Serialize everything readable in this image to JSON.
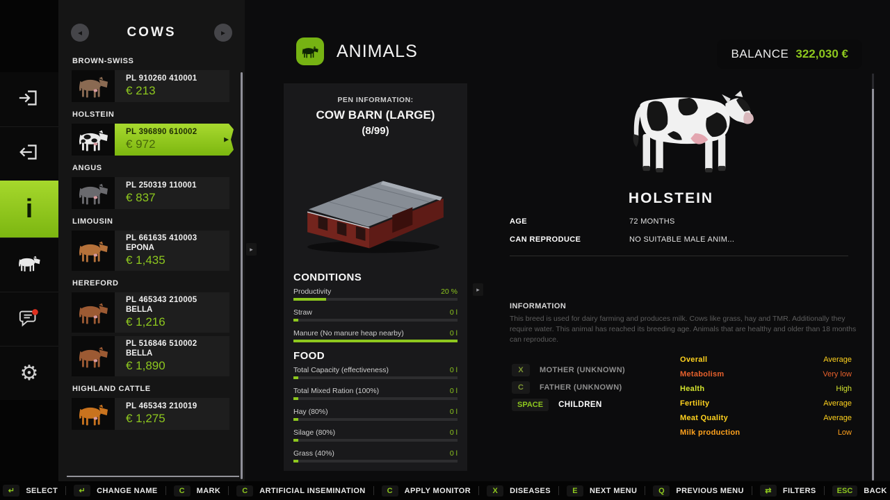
{
  "colors": {
    "accent_green": "#8dc71e",
    "selected_gradient_top": "#a8d92f",
    "selected_gradient_bottom": "#7cb70f",
    "notification_red": "#e03020"
  },
  "icons": {
    "nav_left": "◂",
    "nav_right": "▸",
    "expander": "▸",
    "gear": "⚙",
    "info": "i",
    "selected_marker": "▶"
  },
  "list_panel": {
    "title": "COWS",
    "sections": [
      {
        "breed": "BROWN-SWISS",
        "cow_color": "#8a6a52",
        "spots": false,
        "items": [
          {
            "id": "PL 910260 410001",
            "name": "",
            "price": "€ 213",
            "selected": false
          }
        ]
      },
      {
        "breed": "HOLSTEIN",
        "cow_color": "#e9e9e9",
        "spots": true,
        "items": [
          {
            "id": "PL 396890 610002",
            "name": "",
            "price": "€ 972",
            "selected": true
          }
        ]
      },
      {
        "breed": "ANGUS",
        "cow_color": "#6a6a6e",
        "spots": false,
        "items": [
          {
            "id": "PL 250319 110001",
            "name": "",
            "price": "€ 837",
            "selected": false
          }
        ]
      },
      {
        "breed": "LIMOUSIN",
        "cow_color": "#b5713a",
        "spots": false,
        "items": [
          {
            "id": "PL 661635 410003",
            "name": "EPONA",
            "price": "€ 1,435",
            "selected": false
          }
        ]
      },
      {
        "breed": "HEREFORD",
        "cow_color": "#9c5a33",
        "spots": false,
        "items": [
          {
            "id": "PL 465343 210005",
            "name": "BELLA",
            "price": "€ 1,216",
            "selected": false
          },
          {
            "id": "PL 516846 510002",
            "name": "BELLA",
            "price": "€ 1,890",
            "selected": false
          }
        ]
      },
      {
        "breed": "HIGHLAND CATTLE",
        "cow_color": "#c9731e",
        "spots": false,
        "items": [
          {
            "id": "PL 465343 210019",
            "name": "",
            "price": "€ 1,275",
            "selected": false
          }
        ]
      }
    ]
  },
  "center": {
    "header": "ANIMALS",
    "pen_label": "PEN INFORMATION:",
    "pen_name": "COW BARN (LARGE)",
    "pen_capacity": "(8/99)",
    "conditions_title": "CONDITIONS",
    "conditions_bars": [
      {
        "label": "Productivity",
        "value": "20 %",
        "fill": 20
      },
      {
        "label": "Straw",
        "value": "0 l",
        "fill": 3
      },
      {
        "label": "Manure (No manure heap nearby)",
        "value": "0 l",
        "fill": 100
      }
    ],
    "food_title": "FOOD",
    "food_bars": [
      {
        "label": "Total Capacity (effectiveness)",
        "value": "0 l",
        "fill": 3
      },
      {
        "label": "Total Mixed Ration (100%)",
        "value": "0 l",
        "fill": 3
      },
      {
        "label": "Hay (80%)",
        "value": "0 l",
        "fill": 3
      },
      {
        "label": "Silage (80%)",
        "value": "0 l",
        "fill": 3
      },
      {
        "label": "Grass (40%)",
        "value": "0 l",
        "fill": 3
      }
    ]
  },
  "detail": {
    "balance_label": "BALANCE",
    "balance_value": "322,030 €",
    "breed_title": "HOLSTEIN",
    "attributes": [
      {
        "label": "AGE",
        "value": "72 MONTHS"
      },
      {
        "label": "CAN REPRODUCE",
        "value": "NO SUITABLE MALE ANIM..."
      }
    ],
    "info_title": "INFORMATION",
    "info_text": "This breed is used for dairy farming and produces milk. Cows like grass, hay and TMR. Additionally they require water. This animal has reached its breeding age. Animals that are healthy and older than 18 months can reproduce.",
    "family": [
      {
        "key": "X",
        "label": "MOTHER (UNKNOWN)",
        "bright": false
      },
      {
        "key": "C",
        "label": "FATHER (UNKNOWN)",
        "bright": false
      },
      {
        "key": "SPACE",
        "label": "CHILDREN",
        "bright": true
      }
    ],
    "stats": [
      {
        "label": "Overall",
        "value": "Average",
        "color": "#ffd21e"
      },
      {
        "label": "Metabolism",
        "value": "Very low",
        "color": "#e8612c"
      },
      {
        "label": "Health",
        "value": "High",
        "color": "#d3e32e"
      },
      {
        "label": "Fertility",
        "value": "Average",
        "color": "#ffd21e"
      },
      {
        "label": "Meat Quality",
        "value": "Average",
        "color": "#ffd21e"
      },
      {
        "label": "Milk production",
        "value": "Low",
        "color": "#ffa21e"
      }
    ]
  },
  "bottom_bar": [
    {
      "key": "↵",
      "label": "SELECT"
    },
    {
      "key": "↵",
      "label": "CHANGE NAME"
    },
    {
      "key": "C",
      "label": "MARK"
    },
    {
      "key": "C",
      "label": "ARTIFICIAL INSEMINATION"
    },
    {
      "key": "C",
      "label": "APPLY MONITOR"
    },
    {
      "key": "X",
      "label": "DISEASES"
    },
    {
      "key": "E",
      "label": "NEXT MENU"
    },
    {
      "key": "Q",
      "label": "PREVIOUS MENU"
    },
    {
      "key": "⇄",
      "label": "FILTERS"
    },
    {
      "key": "ESC",
      "label": "BACK"
    }
  ]
}
